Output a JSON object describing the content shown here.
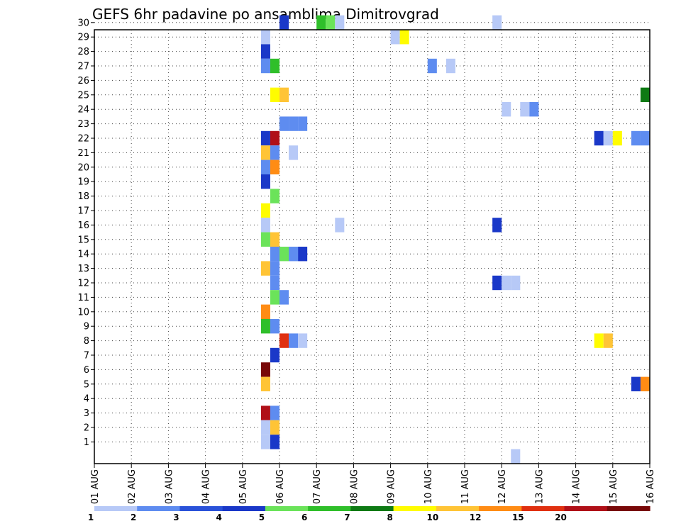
{
  "chart_data": {
    "type": "heatmap",
    "title": "GEFS 6hr padavine po ansamblima Dimitrovgrad",
    "xlabel": "",
    "ylabel": "",
    "x_labels": [
      "01 AUG",
      "02 AUG",
      "03 AUG",
      "04 AUG",
      "05 AUG",
      "06 AUG",
      "07 AUG",
      "08 AUG",
      "09 AUG",
      "10 AUG",
      "11 AUG",
      "12 AUG",
      "13 AUG",
      "14 AUG",
      "15 AUG",
      "16 AUG"
    ],
    "x_range_days": [
      1,
      16
    ],
    "y_labels": [
      "1",
      "2",
      "3",
      "4",
      "5",
      "6",
      "7",
      "8",
      "9",
      "10",
      "11",
      "12",
      "13",
      "14",
      "15",
      "16",
      "17",
      "18",
      "19",
      "20",
      "21",
      "22",
      "23",
      "24",
      "25",
      "26",
      "27",
      "28",
      "29",
      "30"
    ],
    "grid": true,
    "colorbar": {
      "labels": [
        "1",
        "2",
        "3",
        "4",
        "5",
        "6",
        "7",
        "8",
        "10",
        "12",
        "15",
        "20"
      ],
      "colors": [
        "#b7c9f7",
        "#5e8cf0",
        "#2a52d9",
        "#1a38c8",
        "#6be35a",
        "#2fbf2a",
        "#0e7a14",
        "#fffc00",
        "#ffc436",
        "#ff8c14",
        "#e03010",
        "#b01018",
        "#780808"
      ]
    },
    "cells": [
      {
        "member": 30,
        "t": 6.0,
        "level": 3
      },
      {
        "member": 30,
        "t": 7.0,
        "level": 5
      },
      {
        "member": 30,
        "t": 7.25,
        "level": 4
      },
      {
        "member": 30,
        "t": 7.5,
        "level": 0
      },
      {
        "member": 30,
        "t": 11.75,
        "level": 0
      },
      {
        "member": 29,
        "t": 5.5,
        "level": 0
      },
      {
        "member": 29,
        "t": 9.0,
        "level": 0
      },
      {
        "member": 29,
        "t": 9.25,
        "level": 7
      },
      {
        "member": 28,
        "t": 5.5,
        "level": 3
      },
      {
        "member": 27,
        "t": 5.5,
        "level": 1
      },
      {
        "member": 27,
        "t": 5.75,
        "level": 5
      },
      {
        "member": 27,
        "t": 10.0,
        "level": 1
      },
      {
        "member": 27,
        "t": 10.5,
        "level": 0
      },
      {
        "member": 25,
        "t": 5.75,
        "level": 7
      },
      {
        "member": 25,
        "t": 6.0,
        "level": 8
      },
      {
        "member": 25,
        "t": 15.75,
        "level": 6
      },
      {
        "member": 24,
        "t": 12.0,
        "level": 0
      },
      {
        "member": 24,
        "t": 12.5,
        "level": 0
      },
      {
        "member": 24,
        "t": 12.75,
        "level": 1
      },
      {
        "member": 23,
        "t": 6.0,
        "level": 1
      },
      {
        "member": 23,
        "t": 6.25,
        "level": 1
      },
      {
        "member": 23,
        "t": 6.5,
        "level": 1
      },
      {
        "member": 22,
        "t": 5.5,
        "level": 3
      },
      {
        "member": 22,
        "t": 5.75,
        "level": 11
      },
      {
        "member": 22,
        "t": 14.5,
        "level": 3
      },
      {
        "member": 22,
        "t": 14.75,
        "level": 0
      },
      {
        "member": 22,
        "t": 15.0,
        "level": 7
      },
      {
        "member": 22,
        "t": 15.5,
        "level": 1
      },
      {
        "member": 22,
        "t": 15.75,
        "level": 1
      },
      {
        "member": 21,
        "t": 5.5,
        "level": 8
      },
      {
        "member": 21,
        "t": 5.75,
        "level": 1
      },
      {
        "member": 21,
        "t": 6.25,
        "level": 0
      },
      {
        "member": 20,
        "t": 5.5,
        "level": 1
      },
      {
        "member": 20,
        "t": 5.75,
        "level": 9
      },
      {
        "member": 19,
        "t": 5.5,
        "level": 3
      },
      {
        "member": 18,
        "t": 5.75,
        "level": 4
      },
      {
        "member": 17,
        "t": 5.5,
        "level": 7
      },
      {
        "member": 16,
        "t": 5.5,
        "level": 0
      },
      {
        "member": 16,
        "t": 7.5,
        "level": 0
      },
      {
        "member": 16,
        "t": 11.75,
        "level": 3
      },
      {
        "member": 15,
        "t": 5.5,
        "level": 4
      },
      {
        "member": 15,
        "t": 5.75,
        "level": 8
      },
      {
        "member": 14,
        "t": 5.75,
        "level": 1
      },
      {
        "member": 14,
        "t": 6.0,
        "level": 4
      },
      {
        "member": 14,
        "t": 6.25,
        "level": 1
      },
      {
        "member": 14,
        "t": 6.5,
        "level": 3
      },
      {
        "member": 13,
        "t": 5.5,
        "level": 8
      },
      {
        "member": 13,
        "t": 5.75,
        "level": 1
      },
      {
        "member": 12,
        "t": 5.75,
        "level": 1
      },
      {
        "member": 12,
        "t": 11.75,
        "level": 3
      },
      {
        "member": 12,
        "t": 12.0,
        "level": 0
      },
      {
        "member": 12,
        "t": 12.25,
        "level": 0
      },
      {
        "member": 11,
        "t": 5.75,
        "level": 4
      },
      {
        "member": 11,
        "t": 6.0,
        "level": 1
      },
      {
        "member": 10,
        "t": 5.5,
        "level": 9
      },
      {
        "member": 9,
        "t": 5.5,
        "level": 5
      },
      {
        "member": 9,
        "t": 5.75,
        "level": 1
      },
      {
        "member": 8,
        "t": 6.0,
        "level": 10
      },
      {
        "member": 8,
        "t": 6.25,
        "level": 1
      },
      {
        "member": 8,
        "t": 6.5,
        "level": 0
      },
      {
        "member": 8,
        "t": 14.5,
        "level": 7
      },
      {
        "member": 8,
        "t": 14.75,
        "level": 8
      },
      {
        "member": 7,
        "t": 5.75,
        "level": 3
      },
      {
        "member": 6,
        "t": 5.5,
        "level": 12
      },
      {
        "member": 5,
        "t": 5.5,
        "level": 8
      },
      {
        "member": 5,
        "t": 15.5,
        "level": 3
      },
      {
        "member": 5,
        "t": 15.75,
        "level": 9
      },
      {
        "member": 3,
        "t": 5.5,
        "level": 11
      },
      {
        "member": 3,
        "t": 5.75,
        "level": 1
      },
      {
        "member": 2,
        "t": 5.5,
        "level": 0
      },
      {
        "member": 2,
        "t": 5.75,
        "level": 8
      },
      {
        "member": 1,
        "t": 5.5,
        "level": 0
      },
      {
        "member": 1,
        "t": 5.75,
        "level": 3
      },
      {
        "member": 0,
        "t": 12.25,
        "level": 0
      }
    ]
  }
}
